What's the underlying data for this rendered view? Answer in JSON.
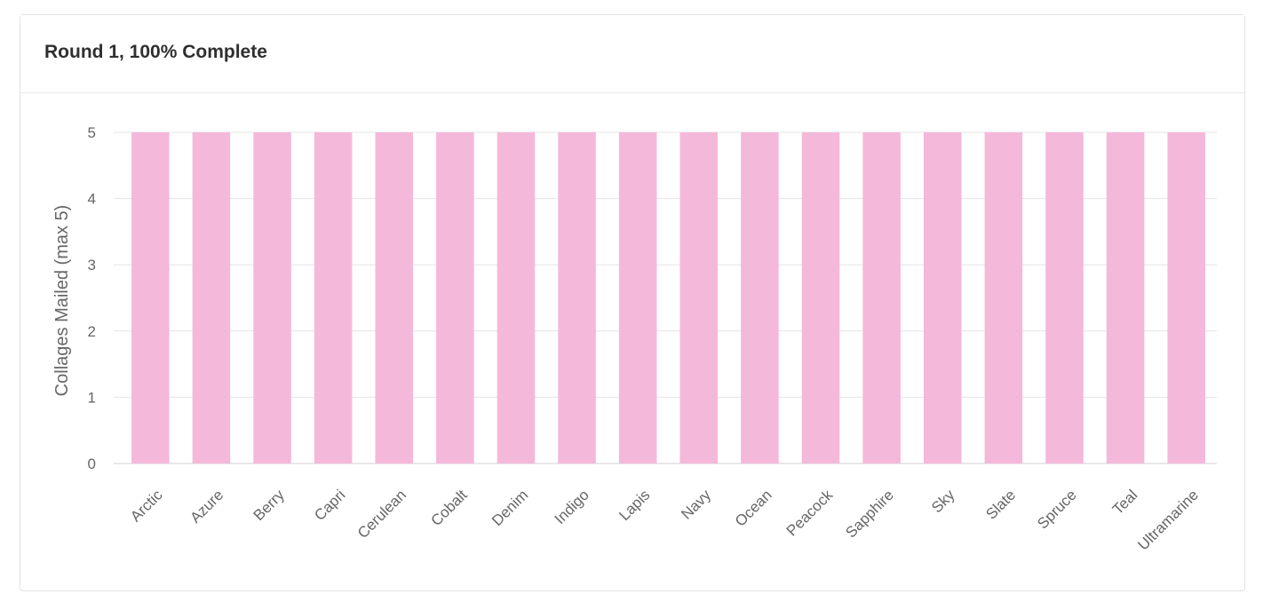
{
  "card": {
    "title": "Round 1, 100% Complete"
  },
  "chart_data": {
    "type": "bar",
    "title": "",
    "xlabel": "",
    "ylabel": "Collages Mailed (max 5)",
    "ylim": [
      0,
      5
    ],
    "yticks": [
      "0",
      "1",
      "2",
      "3",
      "4",
      "5"
    ],
    "grid": true,
    "legend": "none",
    "bar_color": "#f4b8da",
    "categories": [
      "Arctic",
      "Azure",
      "Berry",
      "Capri",
      "Cerulean",
      "Cobalt",
      "Denim",
      "Indigo",
      "Lapis",
      "Navy",
      "Ocean",
      "Peacock",
      "Sapphire",
      "Sky",
      "Slate",
      "Spruce",
      "Teal",
      "Ultramarine"
    ],
    "values": [
      5,
      5,
      5,
      5,
      5,
      5,
      5,
      5,
      5,
      5,
      5,
      5,
      5,
      5,
      5,
      5,
      5,
      5
    ]
  }
}
